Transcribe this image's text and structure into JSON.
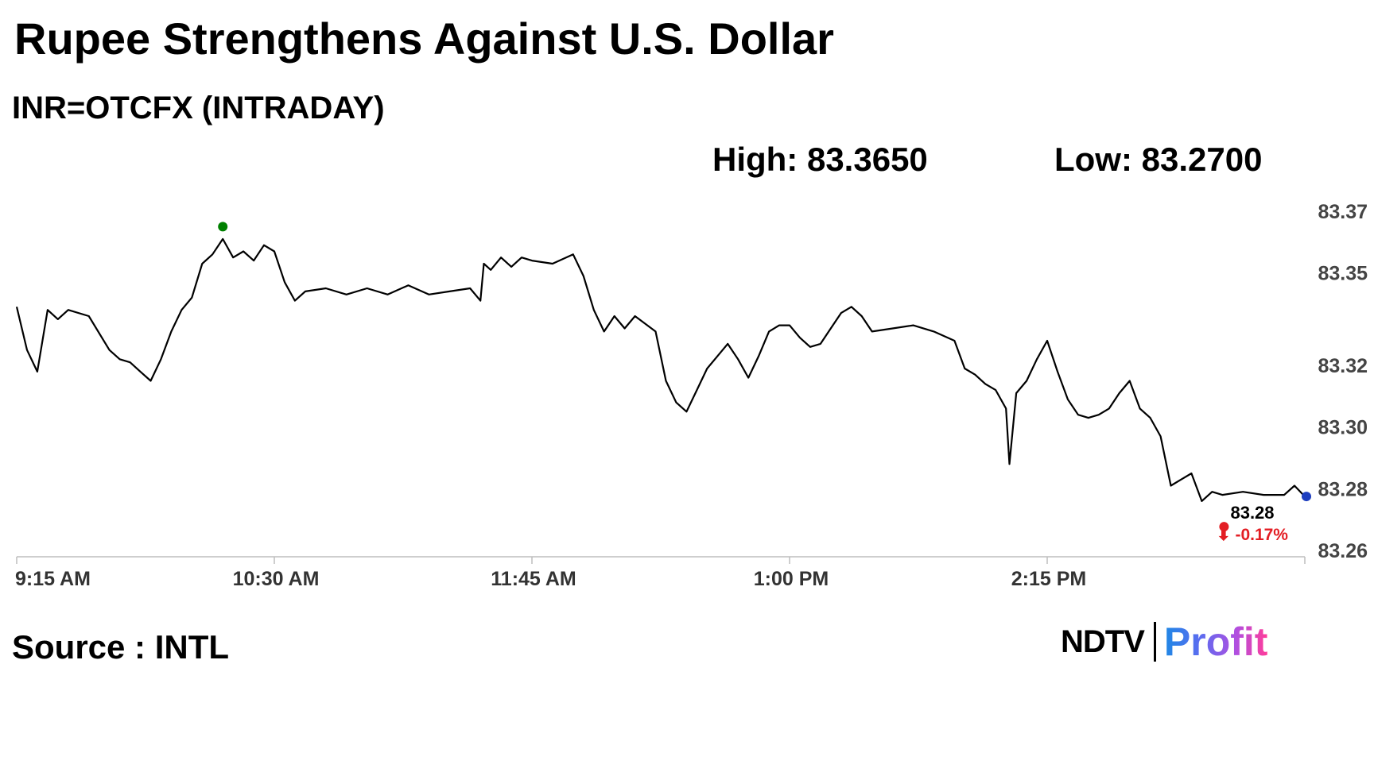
{
  "header": {
    "title": "Rupee Strengthens Against U.S. Dollar",
    "subtitle": "INR=OTCFX (INTRADAY)",
    "high_label": "High: 83.3650",
    "low_label": "Low: 83.2700"
  },
  "footer": {
    "source": "Source : INTL",
    "logo_left": "NDTV",
    "logo_right": "Profit"
  },
  "colors": {
    "line": "#000000",
    "high_marker": "#008000",
    "low_marker": "#e31e24",
    "last_marker": "#1f3fbf",
    "change_text": "#e31e24"
  },
  "chart_data": {
    "type": "line",
    "title": "Rupee Strengthens Against U.S. Dollar",
    "subtitle": "INR=OTCFX (INTRADAY)",
    "xlabel": "",
    "ylabel": "",
    "x_ticks": [
      "9:15 AM",
      "10:30 AM",
      "11:45 AM",
      "1:00 PM",
      "2:15 PM"
    ],
    "y_ticks": [
      83.37,
      83.35,
      83.32,
      83.3,
      83.28,
      83.26
    ],
    "y_tick_labels": [
      "83.37",
      "83.35",
      "83.32",
      "83.30",
      "83.28",
      "83.26"
    ],
    "ylim": [
      83.26,
      83.37
    ],
    "x_range": [
      "9:15 AM",
      "3:30 PM"
    ],
    "grid": false,
    "high": 83.365,
    "low": 83.27,
    "last": {
      "value_label": "83.28",
      "change_label": "⬇ -0.17%",
      "value": 83.2775
    },
    "series": [
      {
        "points": [
          [
            "9:15 AM",
            83.339
          ],
          [
            "9:18 AM",
            83.325
          ],
          [
            "9:21 AM",
            83.318
          ],
          [
            "9:24 AM",
            83.338
          ],
          [
            "9:27 AM",
            83.335
          ],
          [
            "9:30 AM",
            83.338
          ],
          [
            "9:36 AM",
            83.336
          ],
          [
            "9:42 AM",
            83.325
          ],
          [
            "9:45 AM",
            83.322
          ],
          [
            "9:48 AM",
            83.321
          ],
          [
            "9:51 AM",
            83.318
          ],
          [
            "9:54 AM",
            83.315
          ],
          [
            "9:57 AM",
            83.322
          ],
          [
            "10:00 AM",
            83.331
          ],
          [
            "10:03 AM",
            83.338
          ],
          [
            "10:06 AM",
            83.342
          ],
          [
            "10:09 AM",
            83.353
          ],
          [
            "10:12 AM",
            83.356
          ],
          [
            "10:15 AM",
            83.361
          ],
          [
            "10:18 AM",
            83.355
          ],
          [
            "10:21 AM",
            83.357
          ],
          [
            "10:24 AM",
            83.354
          ],
          [
            "10:27 AM",
            83.359
          ],
          [
            "10:30 AM",
            83.357
          ],
          [
            "10:33 AM",
            83.347
          ],
          [
            "10:36 AM",
            83.341
          ],
          [
            "10:39 AM",
            83.344
          ],
          [
            "10:45 AM",
            83.345
          ],
          [
            "10:51 AM",
            83.343
          ],
          [
            "10:57 AM",
            83.345
          ],
          [
            "11:03 AM",
            83.343
          ],
          [
            "11:09 AM",
            83.346
          ],
          [
            "11:15 AM",
            83.343
          ],
          [
            "11:21 AM",
            83.344
          ],
          [
            "11:27 AM",
            83.345
          ],
          [
            "11:30 AM",
            83.341
          ],
          [
            "11:31 AM",
            83.353
          ],
          [
            "11:33 AM",
            83.351
          ],
          [
            "11:36 AM",
            83.355
          ],
          [
            "11:39 AM",
            83.352
          ],
          [
            "11:42 AM",
            83.355
          ],
          [
            "11:45 AM",
            83.354
          ],
          [
            "11:51 AM",
            83.353
          ],
          [
            "11:57 AM",
            83.356
          ],
          [
            "12:00 PM",
            83.349
          ],
          [
            "12:03 PM",
            83.338
          ],
          [
            "12:06 PM",
            83.331
          ],
          [
            "12:09 PM",
            83.336
          ],
          [
            "12:12 PM",
            83.332
          ],
          [
            "12:15 PM",
            83.336
          ],
          [
            "12:21 PM",
            83.331
          ],
          [
            "12:24 PM",
            83.315
          ],
          [
            "12:27 PM",
            83.308
          ],
          [
            "12:30 PM",
            83.305
          ],
          [
            "12:33 PM",
            83.312
          ],
          [
            "12:36 PM",
            83.319
          ],
          [
            "12:39 PM",
            83.323
          ],
          [
            "12:42 PM",
            83.327
          ],
          [
            "12:45 PM",
            83.322
          ],
          [
            "12:48 PM",
            83.316
          ],
          [
            "12:51 PM",
            83.323
          ],
          [
            "12:54 PM",
            83.331
          ],
          [
            "12:57 PM",
            83.333
          ],
          [
            "1:00 PM",
            83.333
          ],
          [
            "1:03 PM",
            83.329
          ],
          [
            "1:06 PM",
            83.326
          ],
          [
            "1:09 PM",
            83.327
          ],
          [
            "1:12 PM",
            83.332
          ],
          [
            "1:15 PM",
            83.337
          ],
          [
            "1:18 PM",
            83.339
          ],
          [
            "1:21 PM",
            83.336
          ],
          [
            "1:24 PM",
            83.331
          ],
          [
            "1:30 PM",
            83.332
          ],
          [
            "1:36 PM",
            83.333
          ],
          [
            "1:42 PM",
            83.331
          ],
          [
            "1:48 PM",
            83.328
          ],
          [
            "1:51 PM",
            83.319
          ],
          [
            "1:54 PM",
            83.317
          ],
          [
            "1:57 PM",
            83.314
          ],
          [
            "2:00 PM",
            83.312
          ],
          [
            "2:03 PM",
            83.306
          ],
          [
            "2:04 PM",
            83.288
          ],
          [
            "2:06 PM",
            83.311
          ],
          [
            "2:09 PM",
            83.315
          ],
          [
            "2:12 PM",
            83.322
          ],
          [
            "2:15 PM",
            83.328
          ],
          [
            "2:18 PM",
            83.318
          ],
          [
            "2:21 PM",
            83.309
          ],
          [
            "2:24 PM",
            83.304
          ],
          [
            "2:27 PM",
            83.303
          ],
          [
            "2:30 PM",
            83.304
          ],
          [
            "2:33 PM",
            83.306
          ],
          [
            "2:36 PM",
            83.311
          ],
          [
            "2:39 PM",
            83.315
          ],
          [
            "2:42 PM",
            83.306
          ],
          [
            "2:45 PM",
            83.303
          ],
          [
            "2:48 PM",
            83.297
          ],
          [
            "2:51 PM",
            83.281
          ],
          [
            "2:54 PM",
            83.283
          ],
          [
            "2:57 PM",
            83.285
          ],
          [
            "3:00 PM",
            83.276
          ],
          [
            "3:03 PM",
            83.279
          ],
          [
            "3:06 PM",
            83.278
          ],
          [
            "3:12 PM",
            83.279
          ],
          [
            "3:18 PM",
            83.278
          ],
          [
            "3:24 PM",
            83.278
          ],
          [
            "3:27 PM",
            83.281
          ],
          [
            "3:30 PM",
            83.2775
          ]
        ]
      }
    ]
  }
}
